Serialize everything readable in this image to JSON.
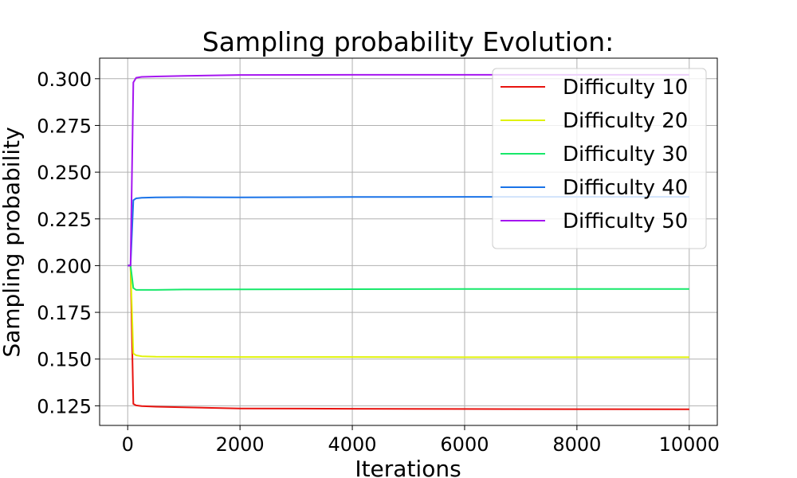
{
  "chart_data": {
    "type": "line",
    "title": "Sampling probability Evolution:",
    "xlabel": "Iterations",
    "ylabel": "Sampling probability",
    "xlim": [
      -500,
      10500
    ],
    "ylim": [
      0.1145,
      0.311
    ],
    "xticks": [
      0,
      2000,
      4000,
      6000,
      8000,
      10000
    ],
    "xtick_labels": [
      "0",
      "2000",
      "4000",
      "6000",
      "8000",
      "10000"
    ],
    "yticks": [
      0.125,
      0.15,
      0.175,
      0.2,
      0.225,
      0.25,
      0.275,
      0.3
    ],
    "ytick_labels": [
      "0.125",
      "0.150",
      "0.175",
      "0.200",
      "0.225",
      "0.250",
      "0.275",
      "0.300"
    ],
    "grid": true,
    "legend_position": "top-right",
    "series": [
      {
        "name": "Difficulty 10",
        "color": "#e8130f",
        "x": [
          0,
          50,
          100,
          150,
          250,
          500,
          1000,
          2000,
          4000,
          6000,
          8000,
          10000
        ],
        "y": [
          0.2,
          0.2,
          0.126,
          0.1252,
          0.1248,
          0.1245,
          0.1242,
          0.1236,
          0.1234,
          0.1233,
          0.1232,
          0.1231
        ]
      },
      {
        "name": "Difficulty 20",
        "color": "#e0f20a",
        "x": [
          0,
          50,
          100,
          150,
          250,
          500,
          1000,
          2000,
          4000,
          6000,
          8000,
          10000
        ],
        "y": [
          0.2,
          0.2,
          0.153,
          0.152,
          0.1515,
          0.1513,
          0.1512,
          0.1511,
          0.1511,
          0.151,
          0.151,
          0.151
        ]
      },
      {
        "name": "Difficulty 30",
        "color": "#17e86a",
        "x": [
          0,
          50,
          100,
          150,
          250,
          500,
          1000,
          2000,
          4000,
          6000,
          8000,
          10000
        ],
        "y": [
          0.2,
          0.2,
          0.188,
          0.187,
          0.187,
          0.187,
          0.1872,
          0.1873,
          0.1874,
          0.1875,
          0.1875,
          0.1875
        ]
      },
      {
        "name": "Difficulty 40",
        "color": "#1a73e8",
        "x": [
          0,
          50,
          100,
          150,
          250,
          500,
          1000,
          2000,
          4000,
          6000,
          8000,
          10000
        ],
        "y": [
          0.2,
          0.2,
          0.235,
          0.236,
          0.2363,
          0.2365,
          0.2366,
          0.2365,
          0.2367,
          0.2368,
          0.2368,
          0.2368
        ]
      },
      {
        "name": "Difficulty 50",
        "color": "#a515f0",
        "x": [
          0,
          50,
          100,
          150,
          250,
          500,
          1000,
          2000,
          4000,
          6000,
          8000,
          10000
        ],
        "y": [
          0.2,
          0.2,
          0.298,
          0.3005,
          0.301,
          0.3012,
          0.3015,
          0.302,
          0.3021,
          0.3021,
          0.3021,
          0.3021
        ]
      }
    ]
  }
}
